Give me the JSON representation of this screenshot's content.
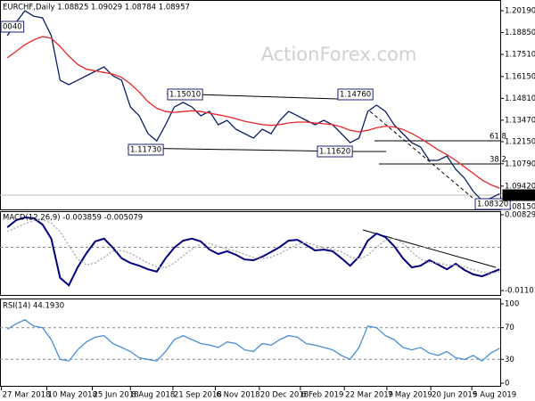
{
  "chart_data": [
    {
      "type": "line",
      "title": "EURCHF,Daily  1.08825 1.09029 1.08784 1.08957",
      "watermark": "ActionForex.com",
      "x": [
        4,
        10,
        16,
        22,
        28,
        34,
        40,
        46,
        52,
        58,
        64,
        70,
        76,
        82,
        88,
        94,
        100,
        106,
        112,
        118,
        124,
        130,
        136,
        142,
        148,
        154,
        160,
        166,
        172,
        178,
        184,
        190,
        196,
        202,
        208,
        214,
        220,
        226,
        232,
        238,
        244,
        250,
        256,
        262,
        268,
        274,
        280,
        286,
        292,
        298,
        304,
        310,
        316,
        322,
        328,
        334,
        340
      ],
      "series": [
        {
          "color": "#0b1f66",
          "values": [
            1.1866,
            1.1948,
            1.2019,
            1.1986,
            1.1975,
            1.1866,
            1.1592,
            1.1565,
            1.1592,
            1.162,
            1.1647,
            1.1674,
            1.162,
            1.1592,
            1.1428,
            1.1374,
            1.1264,
            1.122,
            1.1319,
            1.1428,
            1.1456,
            1.1428,
            1.1374,
            1.1401,
            1.1319,
            1.1346,
            1.1291,
            1.1264,
            1.1237,
            1.1291,
            1.1264,
            1.1346,
            1.1401,
            1.1374,
            1.1346,
            1.1319,
            1.1346,
            1.1319,
            1.1264,
            1.1209,
            1.1237,
            1.1401,
            1.1439,
            1.1401,
            1.1319,
            1.1264,
            1.1209,
            1.1182,
            1.11,
            1.11,
            1.1127,
            1.1045,
            1.0991,
            1.0909,
            1.0854,
            1.0868,
            1.0896
          ]
        },
        {
          "color": "#e8262a",
          "values": [
            1.173,
            1.177,
            1.181,
            1.184,
            1.186,
            1.185,
            1.18,
            1.174,
            1.169,
            1.166,
            1.165,
            1.164,
            1.163,
            1.161,
            1.157,
            1.152,
            1.146,
            1.142,
            1.14,
            1.1395,
            1.14,
            1.1405,
            1.14,
            1.139,
            1.138,
            1.137,
            1.1355,
            1.134,
            1.133,
            1.132,
            1.1315,
            1.132,
            1.133,
            1.1335,
            1.1335,
            1.133,
            1.1325,
            1.132,
            1.1305,
            1.1285,
            1.1275,
            1.1285,
            1.13,
            1.131,
            1.1305,
            1.129,
            1.1265,
            1.1235,
            1.12,
            1.1165,
            1.1135,
            1.11,
            1.106,
            1.102,
            1.098,
            1.095,
            1.093
          ]
        }
      ],
      "xlim": [
        -1,
        341
      ],
      "ylim": [
        1.0799,
        1.2074
      ],
      "yticks": [
        {
          "value": 1.2019,
          "label": "1.20190"
        },
        {
          "value": 1.1885,
          "label": "1.18850"
        },
        {
          "value": 1.1751,
          "label": "1.17510"
        },
        {
          "value": 1.1615,
          "label": "1.16150"
        },
        {
          "value": 1.1481,
          "label": "1.14810"
        },
        {
          "value": 1.1347,
          "label": "1.13470"
        },
        {
          "value": 1.1215,
          "label": "1.12150"
        },
        {
          "value": 1.1079,
          "label": "1.10790"
        },
        {
          "value": 1.0942,
          "label": "1.09420"
        },
        {
          "value": 1.0815,
          "label": "1.08150"
        }
      ],
      "grid": false,
      "annotations": [
        "1.15010",
        "1.14760",
        "1.11730",
        "1.11620",
        "1.08320",
        "0040",
        "61.8",
        "38.2",
        "1.08957"
      ]
    },
    {
      "type": "line",
      "title": "MACD(12,26,9) -0.003859 -0.005079",
      "x": [
        4,
        10,
        16,
        22,
        28,
        34,
        40,
        46,
        52,
        58,
        64,
        70,
        76,
        82,
        88,
        94,
        100,
        106,
        112,
        118,
        124,
        130,
        136,
        142,
        148,
        154,
        160,
        166,
        172,
        178,
        184,
        190,
        196,
        202,
        208,
        214,
        220,
        226,
        232,
        238,
        244,
        250,
        256,
        262,
        268,
        274,
        280,
        286,
        292,
        298,
        304,
        310,
        316,
        322,
        328,
        334,
        340
      ],
      "series": [
        {
          "color": "#00007f",
          "values": [
            0.0051,
            0.0069,
            0.0076,
            0.0074,
            0.0058,
            0.0022,
            -0.0078,
            -0.0097,
            -0.0051,
            -0.0015,
            0.0015,
            0.0022,
            -0.0001,
            -0.0028,
            -0.004,
            -0.0047,
            -0.0056,
            -0.0062,
            -0.0028,
            -0.0001,
            0.0017,
            0.0022,
            0.0015,
            -0.0006,
            -0.0017,
            -0.001,
            -0.0019,
            -0.0031,
            -0.0033,
            -0.0024,
            -0.0012,
            0.0001,
            0.0017,
            0.0019,
            0.0006,
            -0.0008,
            -0.0006,
            -0.001,
            -0.0028,
            -0.0047,
            -0.0024,
            0.0017,
            0.0035,
            0.0026,
            0.0003,
            -0.0028,
            -0.0051,
            -0.0047,
            -0.0033,
            -0.0044,
            -0.0056,
            -0.0042,
            -0.0058,
            -0.0069,
            -0.0074,
            -0.0065,
            -0.0056
          ]
        },
        {
          "color": "#a8a8a8",
          "values": [
            0.004,
            0.005,
            0.006,
            0.0068,
            0.007,
            0.0062,
            0.004,
            0.0005,
            -0.003,
            -0.0045,
            -0.004,
            -0.0025,
            -0.001,
            -0.0008,
            -0.0015,
            -0.0028,
            -0.004,
            -0.005,
            -0.0052,
            -0.004,
            -0.0022,
            -0.0005,
            0.0008,
            0.001,
            0.0002,
            -0.0005,
            -0.001,
            -0.0018,
            -0.0026,
            -0.0029,
            -0.0025,
            -0.0016,
            -0.0004,
            0.0008,
            0.0012,
            0.0006,
            -0.0001,
            -0.0005,
            -0.0012,
            -0.0024,
            -0.003,
            -0.002,
            0.0,
            0.0018,
            0.0022,
            0.001,
            -0.0012,
            -0.003,
            -0.0038,
            -0.004,
            -0.0045,
            -0.0046,
            -0.005,
            -0.0057,
            -0.0063,
            -0.0066,
            -0.0062
          ]
        }
      ],
      "xlim": [
        -1,
        341
      ],
      "ylim": [
        -0.01215,
        0.0092
      ],
      "yticks": [
        0.008292,
        -0.011015
      ],
      "grid": false
    },
    {
      "type": "line",
      "title": "RSI(14) 44.1930",
      "x": [
        4,
        10,
        16,
        22,
        28,
        34,
        40,
        46,
        52,
        58,
        64,
        70,
        76,
        82,
        88,
        94,
        100,
        106,
        112,
        118,
        124,
        130,
        136,
        142,
        148,
        154,
        160,
        166,
        172,
        178,
        184,
        190,
        196,
        202,
        208,
        214,
        220,
        226,
        232,
        238,
        244,
        250,
        256,
        262,
        268,
        274,
        280,
        286,
        292,
        298,
        304,
        310,
        316,
        322,
        328,
        334,
        340
      ],
      "series": [
        {
          "color": "#4a8fd6",
          "values": [
            68,
            75,
            80,
            72,
            70,
            55,
            30,
            28,
            42,
            52,
            58,
            60,
            50,
            45,
            40,
            32,
            30,
            28,
            40,
            55,
            60,
            55,
            50,
            48,
            45,
            52,
            50,
            42,
            40,
            50,
            48,
            55,
            60,
            58,
            50,
            48,
            45,
            42,
            35,
            30,
            45,
            72,
            70,
            60,
            55,
            45,
            42,
            45,
            38,
            35,
            40,
            32,
            30,
            35,
            28,
            38,
            44
          ]
        }
      ],
      "xlim": [
        -1,
        341
      ],
      "ylim": [
        0,
        100
      ],
      "yticks": [
        100,
        70,
        30,
        0
      ],
      "grid": true,
      "xticks": [
        {
          "value": 0,
          "label": "27 Mar 2018"
        },
        {
          "value": 31,
          "label": "10 May 2018"
        },
        {
          "value": 62,
          "label": "25 Jun 2018"
        },
        {
          "value": 88,
          "label": "8 Aug 2018"
        },
        {
          "value": 117,
          "label": "21 Sep 2018"
        },
        {
          "value": 146,
          "label": "6 Nov 2018"
        },
        {
          "value": 176,
          "label": "20 Dec 2018"
        },
        {
          "value": 204,
          "label": "6 Feb 2019"
        },
        {
          "value": 234,
          "label": "22 Mar 2019"
        },
        {
          "value": 263,
          "label": "7 May 2019"
        },
        {
          "value": 293,
          "label": "20 Jun 2019"
        },
        {
          "value": 321,
          "label": "5 Aug 2019"
        }
      ]
    }
  ]
}
